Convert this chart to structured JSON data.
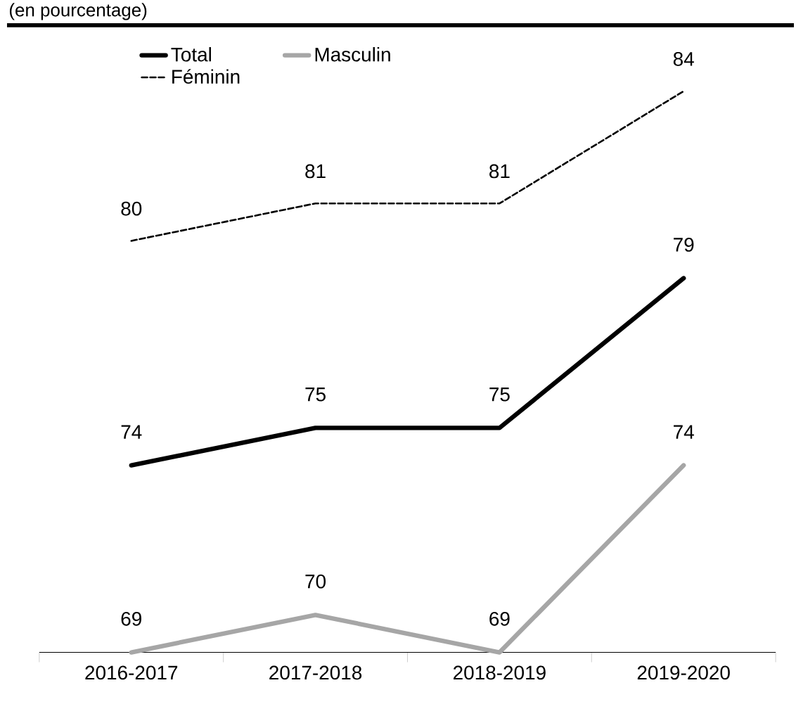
{
  "chart_data": {
    "type": "line",
    "title": "(en pourcentage)",
    "categories": [
      "2016-2017",
      "2017-2018",
      "2018-2019",
      "2019-2020"
    ],
    "series": [
      {
        "name": "Total",
        "color": "#000000",
        "line_style": "solid",
        "values": [
          74,
          75,
          75,
          79
        ]
      },
      {
        "name": "Masculin",
        "color": "#a6a6a6",
        "line_style": "solid",
        "values": [
          69,
          70,
          69,
          74
        ]
      },
      {
        "name": "Féminin",
        "color": "#000000",
        "line_style": "dashed",
        "values": [
          80,
          81,
          81,
          84
        ]
      }
    ],
    "data_labels": true,
    "legend": "top",
    "marker": "none",
    "grid": false
  }
}
